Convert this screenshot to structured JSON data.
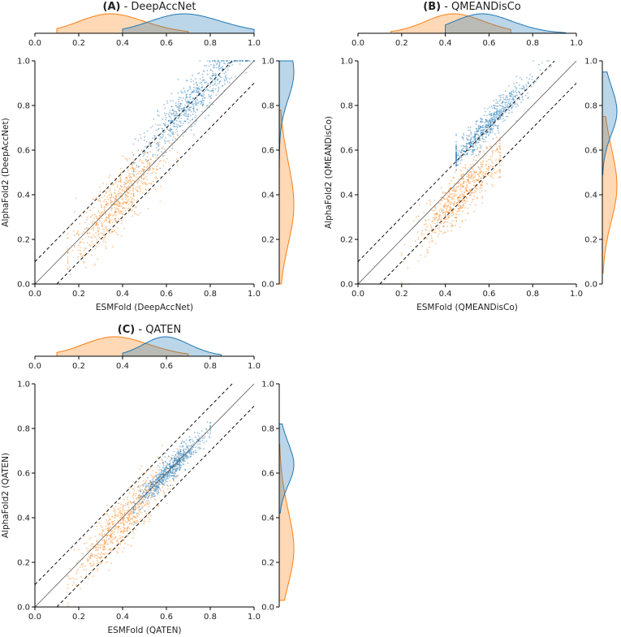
{
  "chart_data": [
    {
      "type": "scatter",
      "panel_letter": "(A)",
      "title_suffix": " - DeepAccNet",
      "xlabel": "ESMFold (DeepAccNet)",
      "ylabel": "AlphaFold2 (DeepAccNet)",
      "xlim": [
        0.0,
        1.0
      ],
      "ylim": [
        0.0,
        1.0
      ],
      "ticks": [
        "0.0",
        "0.2",
        "0.4",
        "0.6",
        "0.8",
        "1.0"
      ],
      "reference_lines": [
        {
          "name": "identity",
          "style": "solid",
          "offset": 0.0
        },
        {
          "name": "upper",
          "style": "dashed",
          "offset": 0.1
        },
        {
          "name": "lower",
          "style": "dashed",
          "offset": -0.1
        }
      ],
      "series": [
        {
          "name": "orange group",
          "color": "#ff7f0e",
          "x_range": [
            0.15,
            0.65
          ],
          "x_mode": 0.38,
          "y_mean": 0.37,
          "y_spread": 0.12,
          "density_x_peak": 0.38,
          "density_y_peak": 0.4
        },
        {
          "name": "blue group",
          "color": "#1f77b4",
          "x_range": [
            0.45,
            1.0
          ],
          "x_mode": 0.72,
          "y_mean": 0.82,
          "y_spread": 0.1,
          "density_x_peak": 0.72,
          "density_y_peak": 0.98
        }
      ]
    },
    {
      "type": "scatter",
      "panel_letter": "(B)",
      "title_suffix": " - QMEANDisCo",
      "xlabel": "ESMFold (QMEANDisCo)",
      "ylabel": "AlphaFold2 (QMEANDisCo)",
      "xlim": [
        0.0,
        1.0
      ],
      "ylim": [
        0.0,
        1.0
      ],
      "ticks": [
        "0.0",
        "0.2",
        "0.4",
        "0.6",
        "0.8",
        "1.0"
      ],
      "reference_lines": [
        {
          "name": "identity",
          "style": "solid",
          "offset": 0.0
        },
        {
          "name": "upper",
          "style": "dashed",
          "offset": 0.1
        },
        {
          "name": "lower",
          "style": "dashed",
          "offset": -0.1
        }
      ],
      "series": [
        {
          "name": "orange group",
          "color": "#ff7f0e",
          "x_range": [
            0.2,
            0.65
          ],
          "x_mode": 0.47,
          "y_mean": 0.4,
          "y_spread": 0.1,
          "density_x_peak": 0.47,
          "density_y_peak": 0.48
        },
        {
          "name": "blue group",
          "color": "#1f77b4",
          "x_range": [
            0.45,
            0.9
          ],
          "x_mode": 0.6,
          "y_mean": 0.72,
          "y_spread": 0.06,
          "density_x_peak": 0.6,
          "density_y_peak": 0.8
        }
      ]
    },
    {
      "type": "scatter",
      "panel_letter": "(C)",
      "title_suffix": " - QATEN",
      "xlabel": "ESMFold (QATEN)",
      "ylabel": "AlphaFold2 (QATEN)",
      "xlim": [
        0.0,
        1.0
      ],
      "ylim": [
        0.0,
        1.0
      ],
      "ticks": [
        "0.0",
        "0.2",
        "0.4",
        "0.6",
        "0.8",
        "1.0"
      ],
      "reference_lines": [
        {
          "name": "identity",
          "style": "solid",
          "offset": 0.0
        },
        {
          "name": "upper",
          "style": "dashed",
          "offset": 0.1
        },
        {
          "name": "lower",
          "style": "dashed",
          "offset": -0.1
        }
      ],
      "series": [
        {
          "name": "orange group",
          "color": "#ff7f0e",
          "x_range": [
            0.15,
            0.65
          ],
          "x_mode": 0.4,
          "y_mean": 0.38,
          "y_spread": 0.1,
          "density_x_peak": 0.4,
          "density_y_peak": 0.3
        },
        {
          "name": "blue group",
          "color": "#1f77b4",
          "x_range": [
            0.45,
            0.8
          ],
          "x_mode": 0.62,
          "y_mean": 0.62,
          "y_spread": 0.05,
          "density_x_peak": 0.62,
          "density_y_peak": 0.66
        }
      ]
    }
  ]
}
